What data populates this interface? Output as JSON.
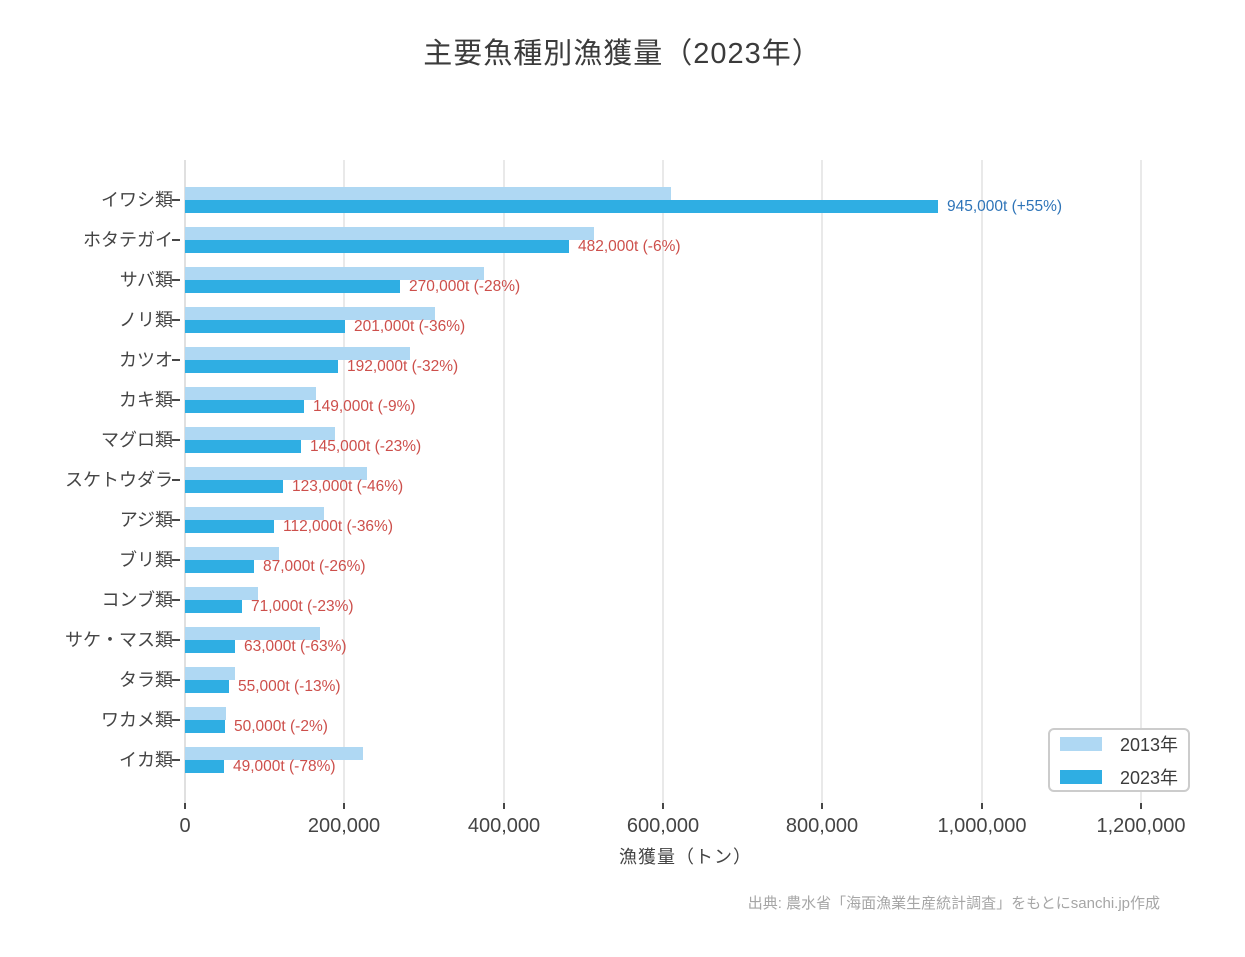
{
  "title": "主要魚種別漁獲量（2023年）",
  "chart_data": {
    "type": "bar",
    "orientation": "horizontal",
    "title": "主要魚種別漁獲量（2023年）",
    "xlabel": "漁獲量（トン）",
    "ylabel": "",
    "xlim": [
      0,
      1200000
    ],
    "grid": true,
    "legend_position": "bottom-right",
    "categories": [
      "イワシ類",
      "ホタテガイ",
      "サバ類",
      "ノリ類",
      "カツオ",
      "カキ類",
      "マグロ類",
      "スケトウダラ",
      "アジ類",
      "ブリ類",
      "コンブ類",
      "サケ・マス類",
      "タラ類",
      "ワカメ類",
      "イカ類"
    ],
    "series": [
      {
        "name": "2013年",
        "color": "#AFD8F3",
        "values": [
          610000,
          513000,
          375000,
          314000,
          282000,
          164000,
          188000,
          228000,
          175000,
          118000,
          92000,
          170000,
          63000,
          51000,
          223000
        ],
        "note": "values estimated from bar lengths; not labeled on chart"
      },
      {
        "name": "2023年",
        "color": "#2FAEE3",
        "values": [
          945000,
          482000,
          270000,
          201000,
          192000,
          149000,
          145000,
          123000,
          112000,
          87000,
          71000,
          63000,
          55000,
          50000,
          49000
        ]
      }
    ],
    "bar_labels": [
      {
        "text": "945,000t (+55%)",
        "sentiment": "positive"
      },
      {
        "text": "482,000t (-6%)",
        "sentiment": "negative"
      },
      {
        "text": "270,000t (-28%)",
        "sentiment": "negative"
      },
      {
        "text": "201,000t (-36%)",
        "sentiment": "negative"
      },
      {
        "text": "192,000t (-32%)",
        "sentiment": "negative"
      },
      {
        "text": "149,000t (-9%)",
        "sentiment": "negative"
      },
      {
        "text": "145,000t (-23%)",
        "sentiment": "negative"
      },
      {
        "text": "123,000t (-46%)",
        "sentiment": "negative"
      },
      {
        "text": "112,000t (-36%)",
        "sentiment": "negative"
      },
      {
        "text": "87,000t (-26%)",
        "sentiment": "negative"
      },
      {
        "text": "71,000t (-23%)",
        "sentiment": "negative"
      },
      {
        "text": "63,000t (-63%)",
        "sentiment": "negative"
      },
      {
        "text": "55,000t (-13%)",
        "sentiment": "negative"
      },
      {
        "text": "50,000t (-2%)",
        "sentiment": "negative"
      },
      {
        "text": "49,000t (-78%)",
        "sentiment": "negative"
      }
    ],
    "label_colors": {
      "positive": "#2E74B8",
      "negative": "#CD4F4B"
    },
    "x_ticks": [
      {
        "value": 0,
        "label": "0"
      },
      {
        "value": 200000,
        "label": "200,000"
      },
      {
        "value": 400000,
        "label": "400,000"
      },
      {
        "value": 600000,
        "label": "600,000"
      },
      {
        "value": 800000,
        "label": "800,000"
      },
      {
        "value": 1000000,
        "label": "1,000,000"
      },
      {
        "value": 1200000,
        "label": "1,200,000"
      }
    ]
  },
  "legend": {
    "items": [
      {
        "label": "2013年",
        "color": "#AFD8F3"
      },
      {
        "label": "2023年",
        "color": "#2FAEE3"
      }
    ]
  },
  "footer": "出典: 農水省「海面漁業生産統計調査」をもとにsanchi.jp作成"
}
